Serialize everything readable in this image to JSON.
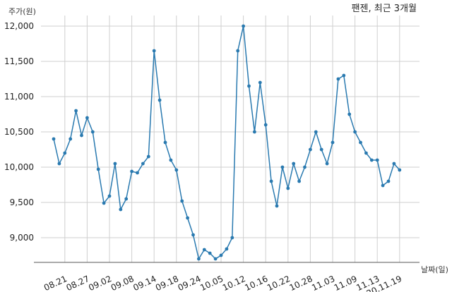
{
  "chart_data": {
    "type": "line",
    "title": "팬젠, 최근 3개월",
    "ylabel": "주가(원)",
    "xlabel": "날짜(일)",
    "ylim": [
      8650,
      12150
    ],
    "y_ticks": [
      9000,
      9500,
      10000,
      10500,
      11000,
      11500,
      12000
    ],
    "y_tick_labels": [
      "9,000",
      "9,500",
      "10,000",
      "10,500",
      "11,000",
      "11,500",
      "12,000"
    ],
    "x_tick_labels": [
      "08.21",
      "08.27",
      "09.02",
      "09.08",
      "09.14",
      "09.18",
      "09.24",
      "10.05",
      "10.12",
      "10.16",
      "10.22",
      "10.28",
      "11.03",
      "11.09",
      "11.13",
      "20.11.19"
    ],
    "x_tick_indices": [
      2,
      6,
      10,
      14,
      18,
      22,
      26,
      30,
      34,
      38,
      42,
      46,
      50,
      54,
      58,
      62
    ],
    "grid": true,
    "color": "#2a7ab0",
    "series": [
      {
        "values": [
          10400,
          10050,
          10200,
          10400,
          10800,
          10450,
          10700,
          10500,
          9970,
          9490,
          9590,
          10050,
          9400,
          9550,
          9940,
          9920,
          10050,
          10150,
          11650,
          10950,
          10350,
          10100,
          9960,
          9520,
          9280,
          9040,
          8700,
          8830,
          8780,
          8700,
          8750,
          8840,
          9000,
          11650,
          12000,
          11150,
          10500,
          11200,
          10600,
          9800,
          9450,
          10000,
          9700,
          10050,
          9800,
          10000,
          10250,
          10500,
          10250,
          10050,
          10350,
          11250,
          11300,
          10750,
          10500,
          10350,
          10200,
          10100,
          10100,
          9740,
          9800,
          10050,
          9960
        ]
      }
    ]
  }
}
